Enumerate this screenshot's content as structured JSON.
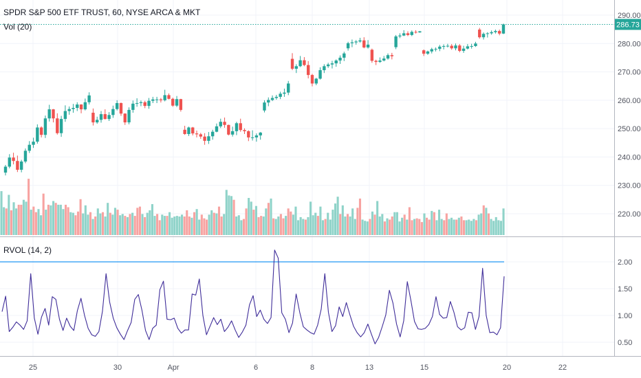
{
  "chart_data": [
    {
      "type": "candlestick",
      "title": "SPDR S&P 500 ETF TRUST, 60, NYSE ARCA & MKT",
      "last_price": 286.73,
      "last_price_label": "286.73",
      "ylim": [
        210,
        292
      ],
      "y_ticks": [
        220,
        230,
        240,
        250,
        260,
        270,
        280,
        290
      ],
      "y_tick_labels": [
        "220.00",
        "230.00",
        "240.00",
        "250.00",
        "260.00",
        "270.00",
        "280.00",
        "290.00"
      ],
      "x_tick_labels": [
        "25",
        "30",
        "Apr",
        "6",
        "8",
        "13",
        "15",
        "20",
        "22"
      ],
      "colors": {
        "up": "#26a69a",
        "down": "#ef5350",
        "price_line": "#26a69a"
      },
      "candles": [
        [
          234.5,
          237.2,
          233.5,
          236.6
        ],
        [
          236.6,
          241.0,
          236.0,
          239.8
        ],
        [
          239.8,
          241.5,
          237.4,
          238.6
        ],
        [
          238.6,
          240.5,
          234.7,
          235.5
        ],
        [
          235.5,
          239.0,
          234.6,
          238.4
        ],
        [
          238.4,
          243.0,
          237.8,
          242.2
        ],
        [
          242.2,
          245.6,
          241.4,
          244.3
        ],
        [
          244.3,
          246.8,
          243.2,
          245.4
        ],
        [
          245.4,
          251.5,
          244.7,
          250.4
        ],
        [
          250.4,
          250.8,
          246.9,
          247.8
        ],
        [
          247.8,
          254.6,
          246.7,
          253.6
        ],
        [
          253.6,
          258.4,
          252.5,
          256.8
        ],
        [
          256.8,
          256.9,
          252.2,
          253.6
        ],
        [
          253.6,
          255.4,
          247.9,
          248.4
        ],
        [
          248.4,
          254.5,
          247.1,
          253.4
        ],
        [
          253.4,
          258.2,
          252.4,
          256.2
        ],
        [
          256.2,
          257.8,
          254.9,
          256.9
        ],
        [
          256.9,
          258.7,
          255.6,
          257.3
        ],
        [
          257.3,
          259.3,
          256.2,
          258.5
        ],
        [
          258.5,
          258.6,
          255.4,
          256.8
        ],
        [
          256.8,
          260.6,
          256.4,
          259.3
        ],
        [
          259.3,
          262.8,
          258.5,
          261.7
        ],
        [
          255.6,
          257.1,
          251.1,
          252.2
        ],
        [
          252.2,
          254.2,
          251.7,
          253.1
        ],
        [
          253.1,
          256.2,
          252.1,
          255.1
        ],
        [
          255.1,
          256.8,
          253.2,
          253.4
        ],
        [
          253.4,
          255.8,
          252.7,
          254.8
        ],
        [
          254.8,
          258.1,
          253.8,
          256.9
        ],
        [
          256.9,
          260.0,
          256.4,
          259.0
        ],
        [
          259.0,
          259.2,
          254.5,
          255.3
        ],
        [
          255.3,
          255.4,
          251.3,
          252.2
        ],
        [
          252.2,
          257.5,
          251.5,
          256.6
        ],
        [
          256.6,
          259.9,
          255.6,
          258.8
        ],
        [
          258.8,
          260.7,
          257.7,
          259.0
        ],
        [
          259.0,
          259.9,
          257.9,
          259.3
        ],
        [
          259.3,
          259.8,
          257.2,
          258.0
        ],
        [
          258.0,
          260.8,
          257.0,
          259.8
        ],
        [
          259.8,
          261.2,
          259.0,
          260.3
        ],
        [
          260.3,
          261.2,
          259.0,
          260.3
        ],
        [
          260.3,
          260.8,
          259.2,
          260.0
        ],
        [
          260.0,
          263.7,
          259.6,
          261.8
        ],
        [
          261.8,
          262.4,
          260.3,
          260.5
        ],
        [
          260.5,
          260.9,
          257.7,
          258.1
        ],
        [
          258.1,
          261.5,
          257.6,
          260.4
        ],
        [
          260.4,
          260.5,
          256.0,
          256.6
        ],
        [
          249.6,
          251.0,
          247.8,
          248.1
        ],
        [
          248.1,
          250.7,
          247.4,
          250.4
        ],
        [
          250.4,
          250.6,
          247.6,
          248.3
        ],
        [
          248.3,
          249.3,
          246.9,
          248.0
        ],
        [
          248.0,
          248.5,
          246.4,
          247.2
        ],
        [
          247.2,
          248.4,
          244.3,
          245.7
        ],
        [
          245.7,
          248.8,
          244.6,
          247.3
        ],
        [
          247.3,
          249.6,
          246.1,
          248.9
        ],
        [
          248.9,
          251.8,
          248.7,
          250.8
        ],
        [
          250.8,
          253.5,
          250.2,
          252.4
        ],
        [
          252.4,
          253.9,
          250.3,
          251.3
        ],
        [
          251.3,
          251.4,
          247.6,
          247.9
        ],
        [
          247.9,
          250.7,
          247.2,
          249.1
        ],
        [
          249.1,
          252.4,
          247.7,
          251.9
        ],
        [
          251.9,
          253.5,
          248.9,
          249.5
        ],
        [
          249.5,
          250.1,
          248.1,
          249.1
        ],
        [
          249.1,
          249.4,
          245.6,
          246.9
        ],
        [
          246.9,
          249.4,
          245.8,
          246.9
        ],
        [
          246.9,
          248.3,
          245.4,
          247.6
        ],
        [
          247.6,
          248.8,
          246.1,
          248.6
        ],
        [
          256.4,
          260.0,
          255.7,
          259.2
        ],
        [
          259.2,
          261.0,
          257.9,
          260.1
        ],
        [
          260.1,
          261.7,
          259.7,
          260.8
        ],
        [
          260.8,
          261.9,
          260.2,
          261.2
        ],
        [
          261.2,
          263.0,
          260.4,
          262.3
        ],
        [
          262.3,
          264.1,
          261.2,
          262.7
        ],
        [
          262.7,
          266.8,
          261.8,
          265.9
        ],
        [
          274.6,
          276.6,
          270.6,
          271.1
        ],
        [
          271.1,
          272.7,
          269.6,
          272.0
        ],
        [
          272.0,
          275.6,
          271.7,
          274.1
        ],
        [
          274.1,
          275.2,
          272.0,
          272.4
        ],
        [
          272.4,
          273.8,
          267.7,
          268.9
        ],
        [
          268.9,
          269.3,
          264.9,
          265.9
        ],
        [
          265.9,
          267.9,
          265.3,
          267.6
        ],
        [
          267.6,
          271.6,
          267.3,
          270.6
        ],
        [
          270.6,
          272.7,
          269.6,
          272.0
        ],
        [
          272.0,
          273.2,
          271.4,
          272.6
        ],
        [
          272.6,
          273.9,
          271.2,
          273.0
        ],
        [
          273.0,
          274.4,
          271.8,
          274.0
        ],
        [
          274.0,
          275.8,
          272.8,
          275.0
        ],
        [
          275.0,
          277.1,
          273.8,
          276.5
        ],
        [
          278.3,
          280.6,
          277.5,
          280.1
        ],
        [
          280.1,
          281.4,
          278.7,
          280.4
        ],
        [
          280.4,
          281.2,
          279.6,
          280.7
        ],
        [
          280.7,
          282.0,
          280.3,
          281.1
        ],
        [
          281.1,
          282.2,
          278.3,
          278.6
        ],
        [
          278.6,
          281.2,
          278.2,
          279.6
        ],
        [
          277.8,
          278.2,
          273.2,
          273.9
        ],
        [
          273.9,
          274.3,
          272.4,
          273.5
        ],
        [
          273.5,
          275.1,
          273.2,
          274.0
        ],
        [
          274.0,
          275.6,
          273.7,
          274.7
        ],
        [
          274.7,
          276.5,
          274.3,
          275.9
        ],
        [
          275.9,
          276.7,
          274.4,
          275.5
        ],
        [
          278.7,
          283.0,
          278.0,
          282.5
        ],
        [
          282.5,
          283.6,
          281.9,
          282.8
        ],
        [
          282.8,
          284.7,
          282.6,
          283.6
        ],
        [
          283.6,
          284.3,
          282.6,
          283.0
        ],
        [
          283.0,
          284.6,
          282.6,
          284.1
        ],
        [
          284.1,
          284.7,
          283.5,
          283.9
        ],
        [
          283.9,
          284.4,
          283.8,
          284.3
        ],
        [
          277.6,
          277.9,
          275.6,
          276.4
        ],
        [
          276.4,
          277.5,
          276.0,
          277.2
        ],
        [
          277.2,
          278.5,
          276.5,
          278.0
        ],
        [
          278.0,
          278.6,
          277.2,
          278.1
        ],
        [
          278.1,
          279.5,
          277.3,
          278.9
        ],
        [
          278.9,
          279.7,
          277.9,
          279.1
        ],
        [
          279.1,
          279.9,
          278.6,
          279.2
        ],
        [
          279.2,
          279.8,
          277.8,
          278.3
        ],
        [
          278.3,
          280.0,
          277.6,
          279.3
        ],
        [
          279.3,
          279.8,
          276.9,
          277.4
        ],
        [
          277.4,
          279.2,
          276.7,
          278.2
        ],
        [
          278.2,
          279.8,
          277.9,
          279.0
        ],
        [
          279.0,
          279.9,
          278.2,
          279.1
        ],
        [
          279.1,
          280.6,
          278.8,
          280.0
        ],
        [
          284.9,
          285.5,
          281.7,
          282.2
        ],
        [
          282.2,
          283.9,
          281.4,
          283.4
        ],
        [
          283.4,
          284.0,
          282.1,
          283.6
        ],
        [
          283.6,
          284.6,
          283.1,
          284.0
        ],
        [
          284.0,
          284.9,
          283.5,
          284.4
        ],
        [
          284.4,
          284.9,
          282.9,
          283.5
        ],
        [
          283.5,
          287.0,
          283.3,
          286.73
        ]
      ]
    },
    {
      "type": "bar",
      "title": "Vol (20)",
      "values": [
        71,
        45,
        43,
        65,
        40,
        53,
        43,
        49,
        49,
        57,
        54,
        91,
        41,
        46,
        37,
        42,
        32,
        67,
        41,
        49,
        48,
        55,
        52,
        49,
        49,
        42,
        49,
        45,
        37,
        36,
        32,
        38,
        58,
        35,
        48,
        33,
        37,
        26,
        30,
        43,
        35,
        37,
        30,
        52,
        36,
        33,
        44,
        41,
        32,
        34,
        31,
        29,
        34,
        36,
        31,
        44,
        46,
        34,
        29,
        36,
        40,
        50,
        31,
        34,
        24,
        33,
        31,
        31,
        37,
        28,
        30,
        31,
        30,
        33,
        30,
        40,
        30,
        28,
        37,
        42,
        25,
        33,
        27,
        25,
        33,
        40,
        36,
        35,
        46,
        30,
        34,
        73,
        64,
        63,
        57,
        30,
        32,
        24,
        26,
        43,
        60,
        54,
        41,
        47,
        29,
        31,
        30,
        43,
        52,
        59,
        27,
        26,
        30,
        34,
        27,
        31,
        43,
        38,
        33,
        46,
        24,
        29,
        26,
        25,
        29,
        54,
        32,
        36,
        31,
        46,
        24,
        26,
        36,
        25,
        41,
        51,
        62,
        34,
        48,
        30,
        34,
        30,
        43,
        26,
        44,
        59,
        25,
        23,
        22,
        26,
        38,
        33,
        55,
        30,
        34,
        22,
        27,
        25,
        30,
        37,
        37,
        22,
        28,
        33,
        25,
        45,
        24,
        26,
        27,
        26,
        21,
        35,
        28,
        25,
        39,
        37,
        24,
        41,
        26,
        24,
        35,
        26,
        28,
        25,
        25,
        28,
        30,
        24,
        24,
        25,
        23,
        26,
        24,
        33,
        35,
        48,
        44,
        35,
        26,
        23,
        29,
        24,
        23,
        43
      ],
      "directions": [
        "u",
        "u",
        "d",
        "u",
        "d",
        "u",
        "u",
        "d",
        "d",
        "u",
        "u",
        "d",
        "u",
        "d",
        "d",
        "u",
        "u",
        "d",
        "u",
        "d",
        "u",
        "u",
        "d",
        "u",
        "u",
        "u",
        "d",
        "d",
        "u",
        "u",
        "d",
        "d",
        "d",
        "u",
        "u",
        "u",
        "d",
        "u",
        "d",
        "u",
        "u",
        "d",
        "u",
        "u",
        "d",
        "u",
        "u",
        "d",
        "u",
        "u",
        "d",
        "u",
        "d",
        "u",
        "d",
        "d",
        "d",
        "u",
        "d",
        "u",
        "u",
        "u",
        "u",
        "d",
        "d",
        "u",
        "u",
        "d",
        "u",
        "u",
        "u",
        "u",
        "u",
        "u",
        "d",
        "d",
        "d",
        "u",
        "d",
        "u",
        "u",
        "d",
        "d",
        "d",
        "u",
        "u",
        "d",
        "u",
        "d",
        "d",
        "u",
        "u",
        "u",
        "u",
        "d",
        "u",
        "u",
        "u",
        "d",
        "d",
        "u",
        "u",
        "d",
        "u",
        "d",
        "d",
        "u",
        "u",
        "d",
        "u",
        "d",
        "u",
        "u",
        "d",
        "d",
        "u",
        "d",
        "d",
        "u",
        "u",
        "u",
        "u",
        "u",
        "d",
        "u",
        "u",
        "u",
        "u",
        "d",
        "u",
        "u",
        "d",
        "u",
        "u",
        "u",
        "u",
        "u",
        "d",
        "u",
        "u",
        "d",
        "u",
        "u",
        "u",
        "d",
        "d",
        "u",
        "u",
        "u",
        "d",
        "u",
        "d",
        "u",
        "u",
        "u",
        "d",
        "u",
        "d",
        "d",
        "u",
        "u",
        "u",
        "u",
        "d",
        "u",
        "d",
        "d",
        "u",
        "d",
        "d",
        "d",
        "u",
        "d",
        "d",
        "u",
        "d",
        "u",
        "u",
        "u",
        "d",
        "d",
        "u",
        "u",
        "u",
        "d",
        "u",
        "d",
        "d",
        "u",
        "u",
        "u",
        "u",
        "d",
        "u",
        "u",
        "d",
        "u",
        "d",
        "u",
        "u",
        "u",
        "u",
        "u",
        "u"
      ]
    },
    {
      "type": "line",
      "title": "RVOL (14, 2)",
      "ylim": [
        0.25,
        2.3
      ],
      "y_ticks": [
        0.5,
        1.0,
        1.5,
        2.0
      ],
      "y_tick_labels": [
        "0.50",
        "1.00",
        "1.50",
        "2.00"
      ],
      "threshold": 2.0,
      "colors": {
        "line": "#3f2d99",
        "threshold": "#2196f3"
      },
      "values": [
        1.07,
        1.36,
        0.7,
        0.78,
        0.88,
        0.82,
        0.74,
        0.9,
        1.78,
        0.95,
        0.65,
        0.97,
        1.13,
        0.82,
        1.35,
        1.3,
        0.93,
        0.72,
        0.95,
        0.8,
        0.72,
        1.09,
        1.32,
        1.0,
        0.76,
        0.64,
        0.61,
        0.7,
        1.08,
        1.78,
        1.25,
        0.95,
        0.77,
        0.65,
        0.55,
        0.72,
        0.87,
        1.3,
        1.39,
        1.1,
        0.72,
        0.55,
        0.76,
        0.82,
        1.48,
        1.64,
        0.93,
        0.92,
        0.95,
        0.76,
        0.67,
        0.73,
        0.73,
        1.4,
        1.38,
        1.68,
        1.0,
        0.64,
        0.8,
        0.96,
        0.83,
        0.93,
        0.7,
        0.78,
        0.9,
        0.73,
        0.59,
        0.69,
        0.82,
        1.2,
        1.37,
        0.98,
        1.1,
        0.93,
        0.85,
        0.96,
        2.22,
        2.07,
        1.05,
        0.93,
        0.68,
        0.86,
        1.4,
        1.06,
        0.79,
        0.73,
        0.68,
        0.65,
        0.82,
        1.12,
        1.78,
        1.06,
        0.7,
        0.81,
        1.16,
        0.98,
        1.24,
        1.01,
        0.8,
        0.68,
        0.6,
        0.68,
        0.84,
        0.65,
        0.47,
        0.59,
        0.79,
        1.01,
        1.47,
        1.23,
        0.84,
        0.6,
        0.9,
        1.63,
        1.28,
        0.89,
        0.75,
        0.74,
        0.76,
        0.83,
        0.98,
        1.35,
        1.02,
        0.95,
        0.96,
        1.26,
        1.06,
        0.79,
        0.73,
        0.77,
        1.06,
        1.05,
        0.74,
        0.98,
        1.88,
        1.0,
        0.68,
        0.69,
        0.64,
        0.77,
        1.73
      ]
    }
  ]
}
